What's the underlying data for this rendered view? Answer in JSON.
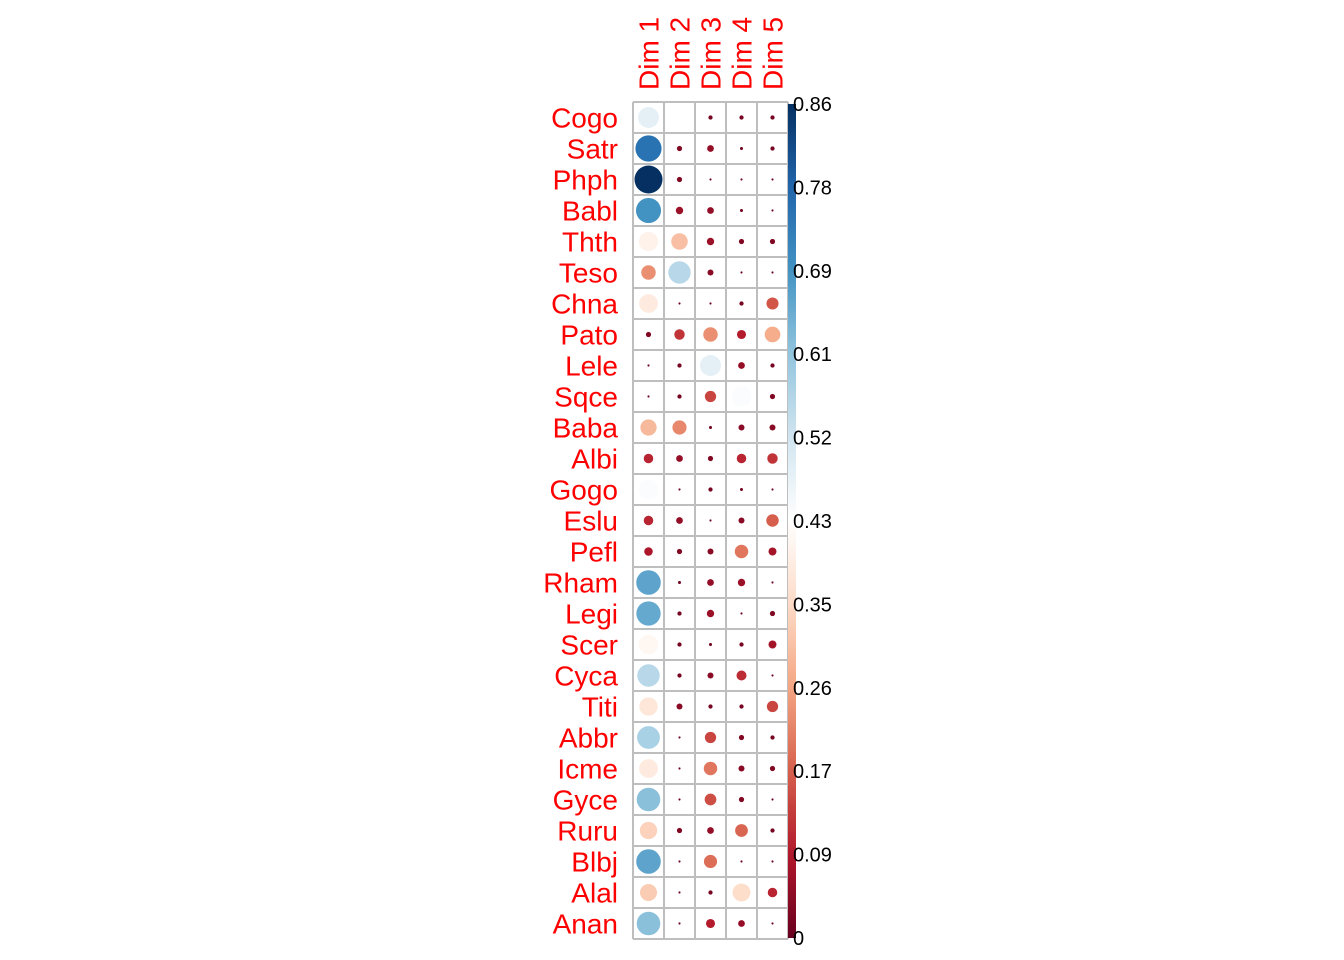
{
  "chart_data": {
    "type": "heatmap",
    "title": "",
    "columns": [
      "Dim 1",
      "Dim 2",
      "Dim 3",
      "Dim 4",
      "Dim 5"
    ],
    "rows": [
      "Cogo",
      "Satr",
      "Phph",
      "Babl",
      "Thth",
      "Teso",
      "Chna",
      "Pato",
      "Lele",
      "Sqce",
      "Baba",
      "Albi",
      "Gogo",
      "Eslu",
      "Pefl",
      "Rham",
      "Legi",
      "Scer",
      "Cyca",
      "Titi",
      "Abbr",
      "Icme",
      "Gyce",
      "Ruru",
      "Blbj",
      "Alal",
      "Anan"
    ],
    "values": [
      [
        0.48,
        0.43,
        0.02,
        0.02,
        0.02
      ],
      [
        0.75,
        0.03,
        0.05,
        0.01,
        0.02
      ],
      [
        0.86,
        0.03,
        0.005,
        0.005,
        0.005
      ],
      [
        0.69,
        0.06,
        0.05,
        0.01,
        0.005
      ],
      [
        0.4,
        0.3,
        0.06,
        0.03,
        0.03
      ],
      [
        0.23,
        0.55,
        0.04,
        0.005,
        0.005
      ],
      [
        0.38,
        0.005,
        0.005,
        0.02,
        0.16
      ],
      [
        0.03,
        0.12,
        0.23,
        0.09,
        0.27
      ],
      [
        0.005,
        0.02,
        0.48,
        0.05,
        0.02
      ],
      [
        0.005,
        0.02,
        0.14,
        0.44,
        0.03
      ],
      [
        0.29,
        0.22,
        0.01,
        0.04,
        0.04
      ],
      [
        0.1,
        0.05,
        0.03,
        0.1,
        0.12
      ],
      [
        0.44,
        0.005,
        0.02,
        0.01,
        0.005
      ],
      [
        0.1,
        0.05,
        0.005,
        0.04,
        0.17
      ],
      [
        0.08,
        0.03,
        0.04,
        0.2,
        0.07
      ],
      [
        0.66,
        0.01,
        0.05,
        0.06,
        0.005
      ],
      [
        0.65,
        0.02,
        0.06,
        0.005,
        0.03
      ],
      [
        0.41,
        0.02,
        0.01,
        0.02,
        0.07
      ],
      [
        0.55,
        0.02,
        0.04,
        0.11,
        0.005
      ],
      [
        0.37,
        0.04,
        0.02,
        0.02,
        0.14
      ],
      [
        0.57,
        0.005,
        0.14,
        0.03,
        0.02
      ],
      [
        0.38,
        0.005,
        0.2,
        0.04,
        0.03
      ],
      [
        0.61,
        0.005,
        0.15,
        0.03,
        0.005
      ],
      [
        0.33,
        0.03,
        0.05,
        0.18,
        0.02
      ],
      [
        0.66,
        0.005,
        0.19,
        0.005,
        0.005
      ],
      [
        0.32,
        0.005,
        0.02,
        0.35,
        0.1
      ],
      [
        0.61,
        0.005,
        0.09,
        0.05,
        0.005
      ]
    ],
    "colorbar": {
      "min": 0,
      "max": 0.86,
      "ticks": [
        "0",
        "0.09",
        "0.17",
        "0.26",
        "0.35",
        "0.43",
        "0.52",
        "0.61",
        "0.69",
        "0.78",
        "0.86"
      ],
      "colors": [
        "#67001f",
        "#b2182b",
        "#d6604d",
        "#f4a582",
        "#fddbc7",
        "#ffffff",
        "#d1e5f0",
        "#92c5de",
        "#4393c3",
        "#2166ac",
        "#053061"
      ]
    },
    "label_color": "#ff0000",
    "grid_color": "#bebebe",
    "legend_position": "right"
  }
}
